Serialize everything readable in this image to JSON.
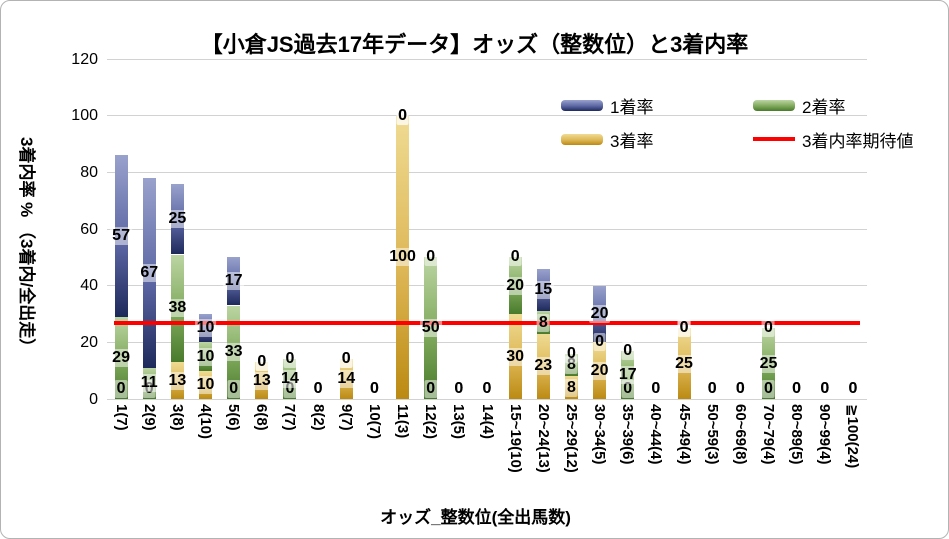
{
  "chart": {
    "title": "【小倉JS過去17年データ】オッズ（整数位）と3着内率",
    "x_axis_title": "オッズ_整数位(全出馬数)",
    "y_axis_title": "3着内率 % （3着内/全出走）"
  },
  "legend": [
    {
      "name": "1着率"
    },
    {
      "name": "2着率"
    },
    {
      "name": "3着率"
    },
    {
      "name": "3着内率期待値"
    }
  ],
  "chart_data": {
    "type": "bar",
    "subtype": "stacked-bar-with-line",
    "categories": [
      "1(7)",
      "2(9)",
      "3(8)",
      "4(10)",
      "5(6)",
      "6(8)",
      "7(7)",
      "8(2)",
      "9(7)",
      "10(7)",
      "11(3)",
      "12(2)",
      "13(5)",
      "14(4)",
      "15~19(10)",
      "20~24(13)",
      "25~29(12)",
      "30~34(5)",
      "35~39(6)",
      "40~44(4)",
      "45~49(4)",
      "50~59(3)",
      "60~69(8)",
      "70~79(4)",
      "80~89(5)",
      "90~99(4)",
      "≧100(24)"
    ],
    "series_bottom_to_top": [
      {
        "name": "3着率",
        "color_top": "#EFDB93",
        "color_mid": "#DDB655",
        "color_bottom": "#BB8A12",
        "values": [
          0,
          0,
          13,
          10,
          0,
          13,
          0,
          0,
          14,
          0,
          100,
          0,
          0,
          0,
          30,
          23,
          8,
          20,
          0,
          0,
          25,
          0,
          0,
          0,
          0,
          0,
          0
        ]
      },
      {
        "name": "2着率",
        "color_top": "#BCD5A3",
        "color_mid": "#7FA95C",
        "color_bottom": "#497A2B",
        "values": [
          29,
          11,
          38,
          10,
          33,
          0,
          14,
          0,
          0,
          0,
          0,
          50,
          0,
          0,
          20,
          8,
          8,
          0,
          17,
          0,
          0,
          0,
          0,
          25,
          0,
          0,
          0
        ]
      },
      {
        "name": "1着率",
        "color_top": "#99A2CC",
        "color_mid": "#5C66A3",
        "color_bottom": "#1E295B",
        "values": [
          57,
          67,
          25,
          10,
          17,
          0,
          0,
          0,
          0,
          0,
          0,
          0,
          0,
          0,
          0,
          15,
          0,
          20,
          0,
          0,
          0,
          0,
          0,
          0,
          0,
          0,
          0
        ]
      }
    ],
    "line": {
      "name": "3着内率期待値",
      "value": 26.9,
      "color": "#FF0000"
    },
    "title": "【小倉JS過去17年データ】オッズ（整数位）と3着内率",
    "xlabel": "オッズ_整数位(全出馬数)",
    "ylabel": "3着内率 % （3着内/全出走）",
    "y_ticks": [
      0,
      20,
      40,
      60,
      80,
      100,
      120
    ],
    "ylim": [
      0,
      120
    ],
    "grid": true,
    "legend_position": "top-right",
    "gridline_color": "#D2D2D2"
  }
}
